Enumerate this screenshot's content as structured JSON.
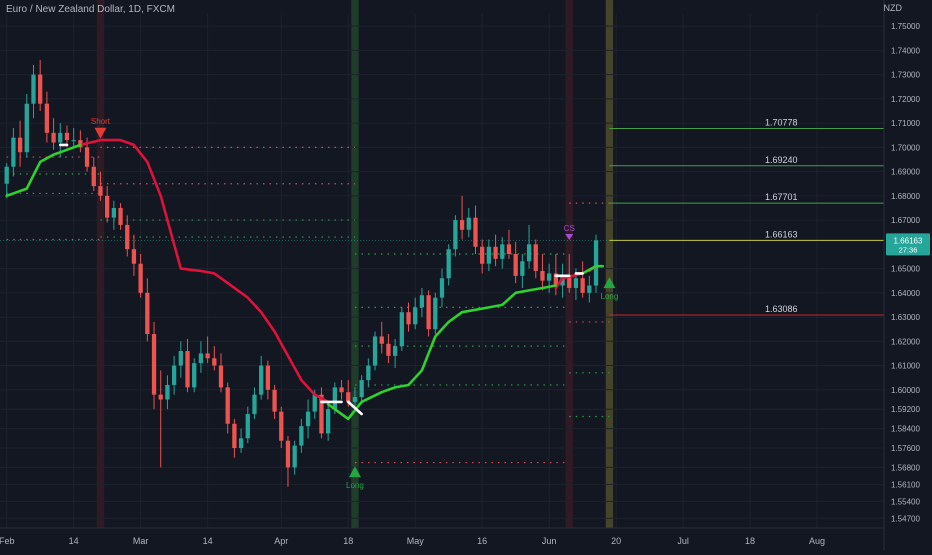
{
  "header": {
    "title": "Euro / New Zealand Dollar, 1D, FXCM",
    "currency": "NZD"
  },
  "chart_data": {
    "type": "candlestick",
    "symbol": "Euro / New Zealand Dollar",
    "timeframe": "1D",
    "exchange": "FXCM",
    "currency": "NZD",
    "ylim": [
      1.543,
      1.755
    ],
    "y_ticks": [
      {
        "value": 1.75,
        "label": "1.75000"
      },
      {
        "value": 1.74,
        "label": "1.74000"
      },
      {
        "value": 1.73,
        "label": "1.73000"
      },
      {
        "value": 1.72,
        "label": "1.72000"
      },
      {
        "value": 1.71,
        "label": "1.71000"
      },
      {
        "value": 1.7,
        "label": "1.70000"
      },
      {
        "value": 1.69,
        "label": "1.69000"
      },
      {
        "value": 1.68,
        "label": "1.68000"
      },
      {
        "value": 1.67,
        "label": "1.67000"
      },
      {
        "value": 1.65,
        "label": "1.65000"
      },
      {
        "value": 1.64,
        "label": "1.64000"
      },
      {
        "value": 1.63,
        "label": "1.63000"
      },
      {
        "value": 1.62,
        "label": "1.62000"
      },
      {
        "value": 1.61,
        "label": "1.61000"
      },
      {
        "value": 1.6,
        "label": "1.60000"
      },
      {
        "value": 1.592,
        "label": "1.59200"
      },
      {
        "value": 1.584,
        "label": "1.58400"
      },
      {
        "value": 1.576,
        "label": "1.57600"
      },
      {
        "value": 1.568,
        "label": "1.56800"
      },
      {
        "value": 1.561,
        "label": "1.56100"
      },
      {
        "value": 1.554,
        "label": "1.55400"
      },
      {
        "value": 1.547,
        "label": "1.54700"
      }
    ],
    "x_ticks": [
      {
        "bar": 0,
        "label": "Feb"
      },
      {
        "bar": 10,
        "label": "14"
      },
      {
        "bar": 20,
        "label": "Mar"
      },
      {
        "bar": 30,
        "label": "14"
      },
      {
        "bar": 41,
        "label": "Apr"
      },
      {
        "bar": 51,
        "label": "18"
      },
      {
        "bar": 61,
        "label": "May"
      },
      {
        "bar": 71,
        "label": "16"
      },
      {
        "bar": 81,
        "label": "Jun"
      },
      {
        "bar": 91,
        "label": "20"
      },
      {
        "bar": 101,
        "label": "Jul"
      },
      {
        "bar": 111,
        "label": "18"
      },
      {
        "bar": 121,
        "label": "Aug"
      }
    ],
    "bar_range": [
      -1,
      131
    ],
    "candles": [
      {
        "o": 1.685,
        "h": 1.6935,
        "l": 1.679,
        "c": 1.692
      },
      {
        "o": 1.692,
        "h": 1.708,
        "l": 1.688,
        "c": 1.704
      },
      {
        "o": 1.704,
        "h": 1.711,
        "l": 1.692,
        "c": 1.698
      },
      {
        "o": 1.698,
        "h": 1.722,
        "l": 1.696,
        "c": 1.718
      },
      {
        "o": 1.718,
        "h": 1.734,
        "l": 1.712,
        "c": 1.73
      },
      {
        "o": 1.73,
        "h": 1.736,
        "l": 1.715,
        "c": 1.718
      },
      {
        "o": 1.718,
        "h": 1.723,
        "l": 1.702,
        "c": 1.706
      },
      {
        "o": 1.706,
        "h": 1.712,
        "l": 1.699,
        "c": 1.702
      },
      {
        "o": 1.702,
        "h": 1.71,
        "l": 1.696,
        "c": 1.706
      },
      {
        "o": 1.706,
        "h": 1.709,
        "l": 1.7,
        "c": 1.703
      },
      {
        "o": 1.703,
        "h": 1.708,
        "l": 1.7,
        "c": 1.703
      },
      {
        "o": 1.703,
        "h": 1.707,
        "l": 1.698,
        "c": 1.7
      },
      {
        "o": 1.7,
        "h": 1.704,
        "l": 1.69,
        "c": 1.692
      },
      {
        "o": 1.692,
        "h": 1.696,
        "l": 1.682,
        "c": 1.684
      },
      {
        "o": 1.684,
        "h": 1.69,
        "l": 1.678,
        "c": 1.68
      },
      {
        "o": 1.68,
        "h": 1.684,
        "l": 1.669,
        "c": 1.671
      },
      {
        "o": 1.671,
        "h": 1.678,
        "l": 1.666,
        "c": 1.675
      },
      {
        "o": 1.675,
        "h": 1.677,
        "l": 1.666,
        "c": 1.668
      },
      {
        "o": 1.668,
        "h": 1.672,
        "l": 1.655,
        "c": 1.658
      },
      {
        "o": 1.658,
        "h": 1.664,
        "l": 1.647,
        "c": 1.652
      },
      {
        "o": 1.652,
        "h": 1.656,
        "l": 1.638,
        "c": 1.64
      },
      {
        "o": 1.64,
        "h": 1.646,
        "l": 1.62,
        "c": 1.623
      },
      {
        "o": 1.623,
        "h": 1.628,
        "l": 1.592,
        "c": 1.598
      },
      {
        "o": 1.598,
        "h": 1.608,
        "l": 1.568,
        "c": 1.596
      },
      {
        "o": 1.596,
        "h": 1.606,
        "l": 1.592,
        "c": 1.602
      },
      {
        "o": 1.602,
        "h": 1.614,
        "l": 1.598,
        "c": 1.61
      },
      {
        "o": 1.61,
        "h": 1.62,
        "l": 1.605,
        "c": 1.616
      },
      {
        "o": 1.616,
        "h": 1.621,
        "l": 1.599,
        "c": 1.601
      },
      {
        "o": 1.601,
        "h": 1.613,
        "l": 1.599,
        "c": 1.611
      },
      {
        "o": 1.611,
        "h": 1.62,
        "l": 1.607,
        "c": 1.615
      },
      {
        "o": 1.615,
        "h": 1.622,
        "l": 1.611,
        "c": 1.613
      },
      {
        "o": 1.613,
        "h": 1.618,
        "l": 1.608,
        "c": 1.61
      },
      {
        "o": 1.61,
        "h": 1.615,
        "l": 1.599,
        "c": 1.601
      },
      {
        "o": 1.601,
        "h": 1.603,
        "l": 1.582,
        "c": 1.586
      },
      {
        "o": 1.586,
        "h": 1.588,
        "l": 1.572,
        "c": 1.576
      },
      {
        "o": 1.576,
        "h": 1.584,
        "l": 1.574,
        "c": 1.58
      },
      {
        "o": 1.58,
        "h": 1.593,
        "l": 1.578,
        "c": 1.59
      },
      {
        "o": 1.59,
        "h": 1.601,
        "l": 1.588,
        "c": 1.598
      },
      {
        "o": 1.598,
        "h": 1.614,
        "l": 1.596,
        "c": 1.61
      },
      {
        "o": 1.61,
        "h": 1.612,
        "l": 1.596,
        "c": 1.6
      },
      {
        "o": 1.6,
        "h": 1.602,
        "l": 1.588,
        "c": 1.591
      },
      {
        "o": 1.591,
        "h": 1.593,
        "l": 1.576,
        "c": 1.579
      },
      {
        "o": 1.579,
        "h": 1.581,
        "l": 1.56,
        "c": 1.568
      },
      {
        "o": 1.568,
        "h": 1.579,
        "l": 1.565,
        "c": 1.577
      },
      {
        "o": 1.577,
        "h": 1.588,
        "l": 1.574,
        "c": 1.585
      },
      {
        "o": 1.585,
        "h": 1.596,
        "l": 1.58,
        "c": 1.591
      },
      {
        "o": 1.591,
        "h": 1.6,
        "l": 1.588,
        "c": 1.598
      },
      {
        "o": 1.598,
        "h": 1.601,
        "l": 1.58,
        "c": 1.582
      },
      {
        "o": 1.582,
        "h": 1.595,
        "l": 1.579,
        "c": 1.592
      },
      {
        "o": 1.592,
        "h": 1.603,
        "l": 1.59,
        "c": 1.601
      },
      {
        "o": 1.601,
        "h": 1.604,
        "l": 1.596,
        "c": 1.599
      },
      {
        "o": 1.599,
        "h": 1.604,
        "l": 1.593,
        "c": 1.595
      },
      {
        "o": 1.595,
        "h": 1.601,
        "l": 1.592,
        "c": 1.597
      },
      {
        "o": 1.597,
        "h": 1.606,
        "l": 1.594,
        "c": 1.604
      },
      {
        "o": 1.604,
        "h": 1.613,
        "l": 1.601,
        "c": 1.61
      },
      {
        "o": 1.61,
        "h": 1.624,
        "l": 1.608,
        "c": 1.622
      },
      {
        "o": 1.622,
        "h": 1.628,
        "l": 1.615,
        "c": 1.619
      },
      {
        "o": 1.619,
        "h": 1.623,
        "l": 1.611,
        "c": 1.614
      },
      {
        "o": 1.614,
        "h": 1.621,
        "l": 1.609,
        "c": 1.618
      },
      {
        "o": 1.618,
        "h": 1.634,
        "l": 1.616,
        "c": 1.632
      },
      {
        "o": 1.632,
        "h": 1.636,
        "l": 1.624,
        "c": 1.627
      },
      {
        "o": 1.627,
        "h": 1.638,
        "l": 1.625,
        "c": 1.634
      },
      {
        "o": 1.634,
        "h": 1.642,
        "l": 1.63,
        "c": 1.639
      },
      {
        "o": 1.639,
        "h": 1.641,
        "l": 1.622,
        "c": 1.625
      },
      {
        "o": 1.625,
        "h": 1.64,
        "l": 1.623,
        "c": 1.638
      },
      {
        "o": 1.638,
        "h": 1.65,
        "l": 1.634,
        "c": 1.646
      },
      {
        "o": 1.646,
        "h": 1.66,
        "l": 1.643,
        "c": 1.658
      },
      {
        "o": 1.658,
        "h": 1.672,
        "l": 1.655,
        "c": 1.67
      },
      {
        "o": 1.67,
        "h": 1.68,
        "l": 1.662,
        "c": 1.666
      },
      {
        "o": 1.666,
        "h": 1.675,
        "l": 1.663,
        "c": 1.671
      },
      {
        "o": 1.671,
        "h": 1.676,
        "l": 1.656,
        "c": 1.659
      },
      {
        "o": 1.659,
        "h": 1.662,
        "l": 1.648,
        "c": 1.652
      },
      {
        "o": 1.652,
        "h": 1.662,
        "l": 1.649,
        "c": 1.659
      },
      {
        "o": 1.659,
        "h": 1.664,
        "l": 1.651,
        "c": 1.654
      },
      {
        "o": 1.654,
        "h": 1.663,
        "l": 1.65,
        "c": 1.66
      },
      {
        "o": 1.66,
        "h": 1.666,
        "l": 1.654,
        "c": 1.656
      },
      {
        "o": 1.656,
        "h": 1.661,
        "l": 1.644,
        "c": 1.647
      },
      {
        "o": 1.647,
        "h": 1.656,
        "l": 1.642,
        "c": 1.653
      },
      {
        "o": 1.653,
        "h": 1.668,
        "l": 1.65,
        "c": 1.66
      },
      {
        "o": 1.66,
        "h": 1.662,
        "l": 1.646,
        "c": 1.649
      },
      {
        "o": 1.649,
        "h": 1.656,
        "l": 1.641,
        "c": 1.645
      },
      {
        "o": 1.645,
        "h": 1.652,
        "l": 1.64,
        "c": 1.648
      },
      {
        "o": 1.648,
        "h": 1.656,
        "l": 1.639,
        "c": 1.643
      },
      {
        "o": 1.643,
        "h": 1.652,
        "l": 1.638,
        "c": 1.647
      },
      {
        "o": 1.647,
        "h": 1.656,
        "l": 1.64,
        "c": 1.642
      },
      {
        "o": 1.642,
        "h": 1.65,
        "l": 1.637,
        "c": 1.646
      },
      {
        "o": 1.646,
        "h": 1.653,
        "l": 1.638,
        "c": 1.64
      },
      {
        "o": 1.64,
        "h": 1.647,
        "l": 1.636,
        "c": 1.643
      },
      {
        "o": 1.643,
        "h": 1.664,
        "l": 1.64,
        "c": 1.6616
      }
    ],
    "trail_up_segments": [
      [
        [
          0,
          1.68
        ],
        [
          3,
          1.683
        ],
        [
          5,
          1.694
        ],
        [
          7,
          1.697
        ],
        [
          9,
          1.699
        ],
        [
          11,
          1.701
        ]
      ],
      [
        [
          48,
          1.594
        ],
        [
          51,
          1.588
        ],
        [
          53,
          1.595
        ],
        [
          56,
          1.599
        ],
        [
          58,
          1.601
        ],
        [
          60,
          1.602
        ],
        [
          62,
          1.608
        ],
        [
          64,
          1.622
        ],
        [
          66,
          1.628
        ],
        [
          68,
          1.632
        ],
        [
          70,
          1.633
        ],
        [
          72,
          1.634
        ],
        [
          74,
          1.635
        ],
        [
          76,
          1.64
        ],
        [
          78,
          1.641
        ],
        [
          80,
          1.642
        ],
        [
          82,
          1.643
        ]
      ],
      [
        [
          86,
          1.648
        ],
        [
          88,
          1.651
        ],
        [
          89,
          1.651
        ]
      ]
    ],
    "trail_down_segments": [
      [
        [
          11,
          1.701
        ],
        [
          14,
          1.703
        ],
        [
          17,
          1.703
        ],
        [
          19,
          1.701
        ],
        [
          21,
          1.694
        ],
        [
          23,
          1.68
        ],
        [
          25,
          1.66
        ],
        [
          26,
          1.65
        ],
        [
          29,
          1.649
        ],
        [
          31,
          1.648
        ],
        [
          33,
          1.644
        ],
        [
          36,
          1.638
        ],
        [
          38,
          1.632
        ],
        [
          40,
          1.624
        ],
        [
          42,
          1.614
        ],
        [
          44,
          1.604
        ],
        [
          46,
          1.598
        ],
        [
          48,
          1.595
        ]
      ],
      [
        [
          82,
          1.642
        ],
        [
          83,
          1.646
        ],
        [
          86,
          1.648
        ]
      ],
      [
        [
          87,
          1.649
        ],
        [
          88,
          1.651
        ]
      ]
    ],
    "trail_white_segments": [
      [
        [
          8,
          1.701
        ],
        [
          9,
          1.701
        ]
      ],
      [
        [
          47,
          1.595
        ],
        [
          50,
          1.595
        ]
      ],
      [
        [
          51,
          1.595
        ],
        [
          53,
          1.59
        ]
      ],
      [
        [
          82,
          1.647
        ],
        [
          84,
          1.647
        ]
      ],
      [
        [
          85,
          1.648
        ],
        [
          86,
          1.648
        ]
      ]
    ],
    "highlight_columns": [
      {
        "bar": 14,
        "color": "#e53935",
        "alpha": 0.14
      },
      {
        "bar": 52,
        "color": "#43a047",
        "alpha": 0.28
      },
      {
        "bar": 84,
        "color": "#e53935",
        "alpha": 0.14
      },
      {
        "bar": 90,
        "color": "#c6b93a",
        "alpha": 0.28
      }
    ],
    "dotted_levels": [
      {
        "from": 0,
        "to": 14,
        "value": 1.696,
        "color": "#d84b5a"
      },
      {
        "from": 0,
        "to": 14,
        "value": 1.689,
        "color": "#2e9e50"
      },
      {
        "from": 0,
        "to": 14,
        "value": 1.681,
        "color": "#2e9e50"
      },
      {
        "from": 0,
        "to": 14,
        "value": 1.662,
        "color": "#d84b5a"
      },
      {
        "from": 14,
        "to": 52,
        "value": 1.7,
        "color": "#d84b5a"
      },
      {
        "from": 14,
        "to": 52,
        "value": 1.685,
        "color": "#d84b5a"
      },
      {
        "from": 14,
        "to": 52,
        "value": 1.67,
        "color": "#2e9e50"
      },
      {
        "from": 14,
        "to": 52,
        "value": 1.663,
        "color": "#2e9e50"
      },
      {
        "from": 52,
        "to": 84,
        "value": 1.656,
        "color": "#2e9e50"
      },
      {
        "from": 52,
        "to": 84,
        "value": 1.634,
        "color": "#2e9e50"
      },
      {
        "from": 52,
        "to": 84,
        "value": 1.618,
        "color": "#2e9e50"
      },
      {
        "from": 52,
        "to": 84,
        "value": 1.602,
        "color": "#2e9e50"
      },
      {
        "from": 52,
        "to": 84,
        "value": 1.57,
        "color": "#d84b5a"
      },
      {
        "from": 84,
        "to": 90,
        "value": 1.677,
        "color": "#d84b5a"
      },
      {
        "from": 84,
        "to": 90,
        "value": 1.628,
        "color": "#d84b5a"
      },
      {
        "from": 84,
        "to": 90,
        "value": 1.607,
        "color": "#2e9e50"
      },
      {
        "from": 84,
        "to": 90,
        "value": 1.589,
        "color": "#2e9e50"
      }
    ],
    "target_lines": [
      {
        "from_bar": 90,
        "value": 1.70778,
        "label": "1.70778",
        "color": "#43a047"
      },
      {
        "from_bar": 90,
        "value": 1.6924,
        "label": "1.69240",
        "color": "#43a047"
      },
      {
        "from_bar": 90,
        "value": 1.67701,
        "label": "1.67701",
        "color": "#43a047"
      },
      {
        "from_bar": 90,
        "value": 1.66163,
        "label": "1.66163",
        "color": "#c6c93a"
      },
      {
        "from_bar": 90,
        "value": 1.63086,
        "label": "1.63086",
        "color": "#c62828"
      }
    ],
    "signals": [
      {
        "bar": 14,
        "price": 1.706,
        "label": "Short",
        "kind": "down",
        "color": "#e53935"
      },
      {
        "bar": 52,
        "price": 1.566,
        "label": "Long",
        "kind": "up",
        "color": "#26a641"
      },
      {
        "bar": 84,
        "price": 1.663,
        "label": "CS",
        "kind": "down-small",
        "color": "#a64bd6"
      },
      {
        "bar": 90,
        "price": 1.644,
        "label": "Long",
        "kind": "up",
        "color": "#26a641"
      }
    ],
    "last_price": {
      "value": 1.66163,
      "label": "1.66163",
      "countdown": "27:36",
      "color": "#26a69a"
    },
    "colors": {
      "up": "#26a69a",
      "down": "#ef5350",
      "trail_up": "#2ed12e",
      "trail_down": "#e0113a",
      "background": "#131722"
    }
  }
}
